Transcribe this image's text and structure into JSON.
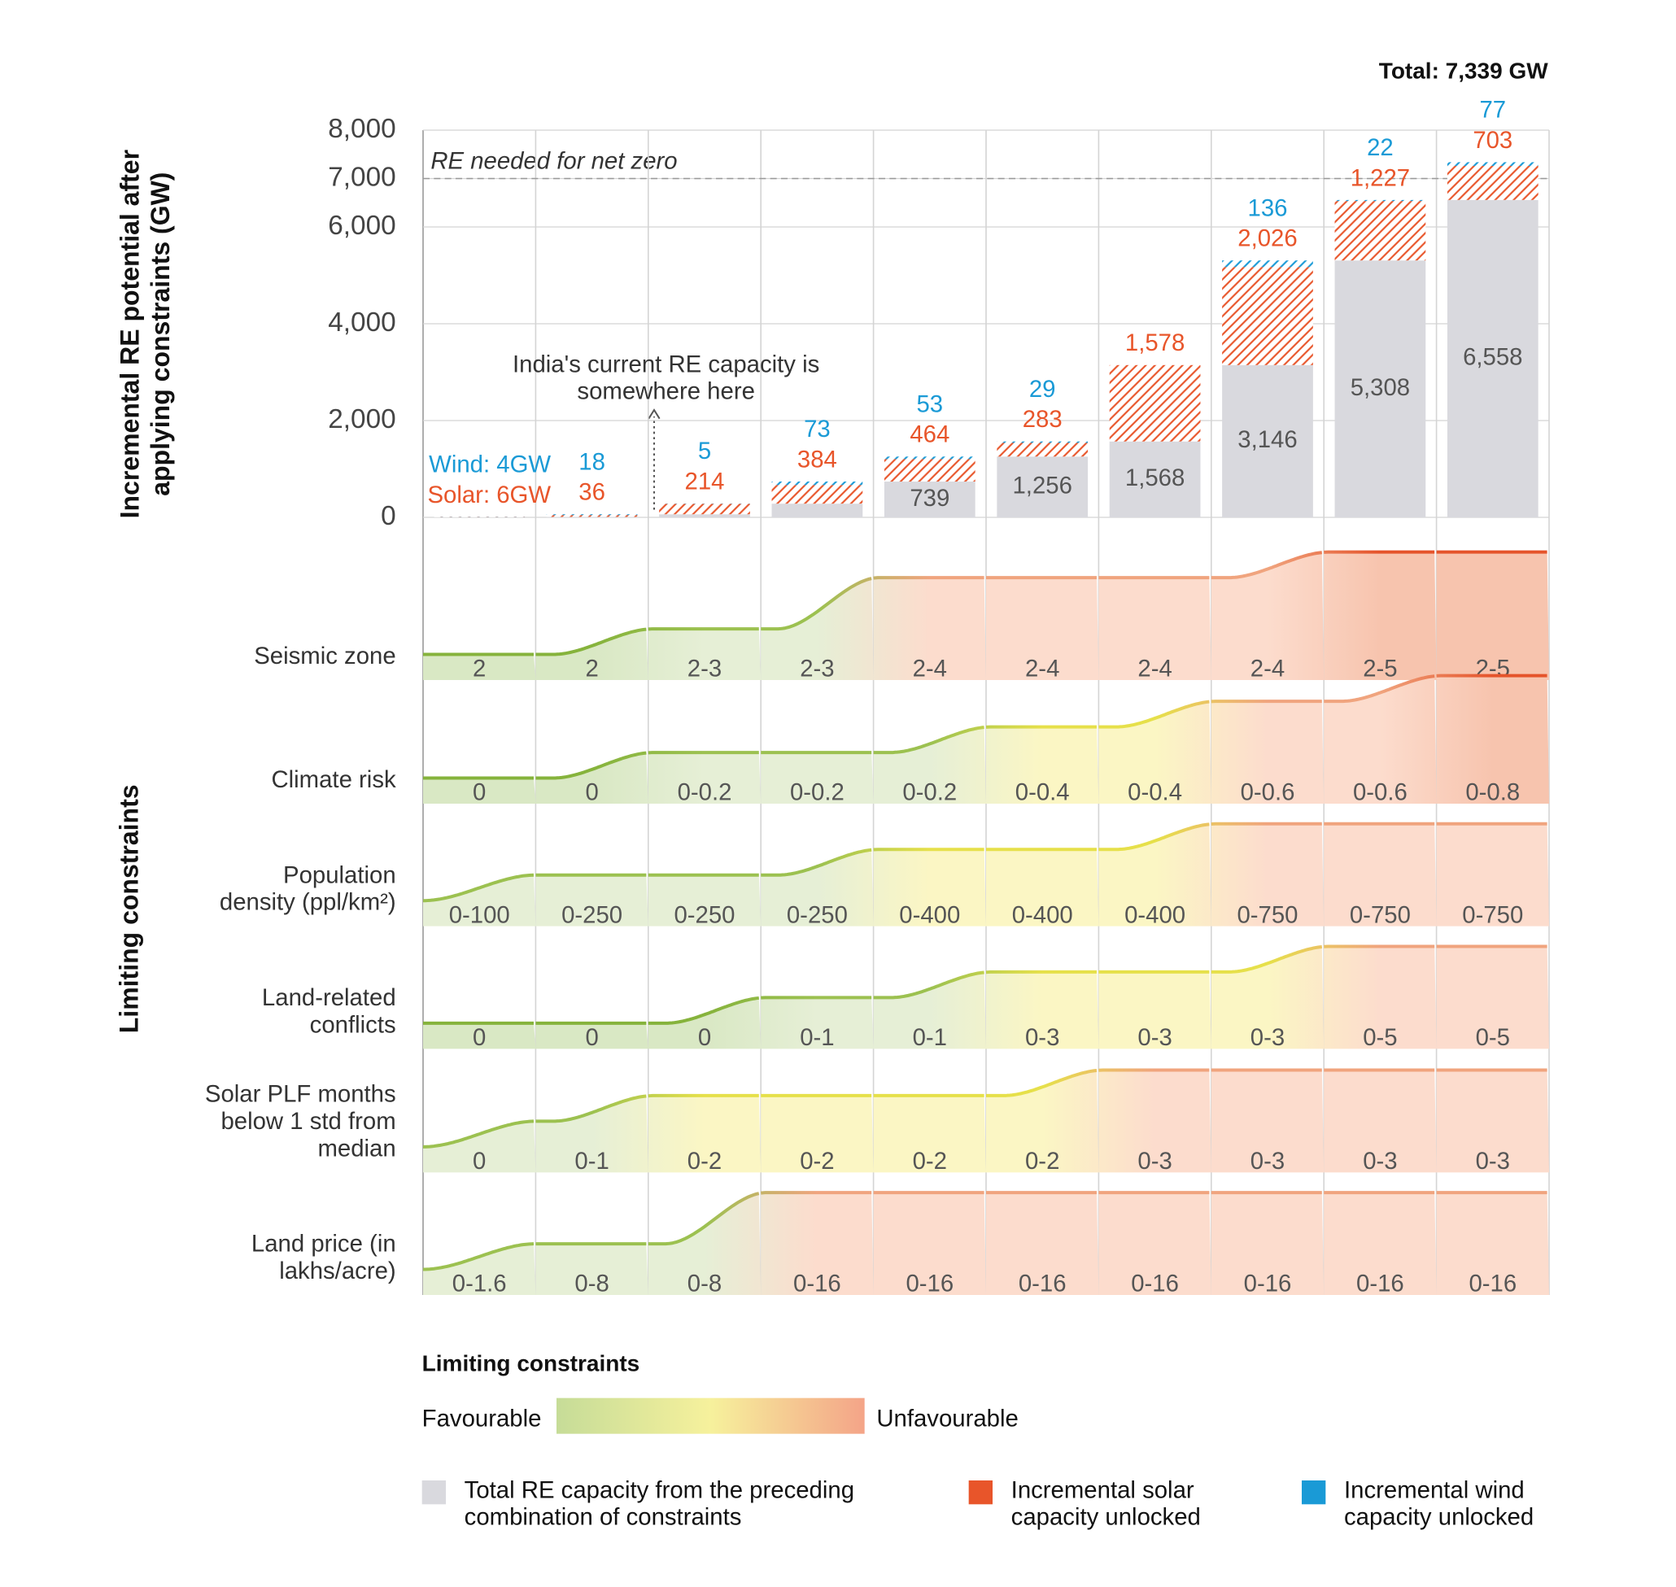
{
  "chart_data": {
    "type": "bar",
    "total_label": "Total: 7,339 GW",
    "ylabel": "Incremental RE potential after applying constraints (GW)",
    "ylim": [
      0,
      8000
    ],
    "yticks": [
      0,
      {
        "value": 2000,
        "label": "2,000"
      },
      {
        "value": 4000,
        "label": "4,000"
      },
      {
        "value": 6000,
        "label": "6,000"
      },
      {
        "value": 7000,
        "label": "7,000"
      },
      {
        "value": 8000,
        "label": "8,000"
      }
    ],
    "grid": true,
    "reference_line": {
      "value": 7000,
      "label": "RE needed for net zero"
    },
    "annotation": "India's current RE capacity is somewhere here",
    "series": [
      {
        "name": "Total RE capacity from the preceding combination of constraints",
        "color": "#d9d9de",
        "values": [
          0,
          10,
          64,
          283,
          739,
          1256,
          1568,
          3146,
          5308,
          6558
        ],
        "value_labels": [
          null,
          null,
          null,
          null,
          "739",
          "1,256",
          "1,568",
          "3,146",
          "5,308",
          "6,558"
        ]
      },
      {
        "name": "Incremental solar capacity unlocked",
        "color": "#e8552a",
        "values": [
          6,
          36,
          214,
          384,
          464,
          283,
          1578,
          2026,
          1227,
          703
        ],
        "value_labels": [
          "Solar: 6GW",
          "36",
          "214",
          "384",
          "464",
          "283",
          "1,578",
          "2,026",
          "1,227",
          "703"
        ]
      },
      {
        "name": "Incremental wind capacity unlocked",
        "color": "#1a9ad6",
        "values": [
          4,
          18,
          5,
          73,
          53,
          29,
          null,
          136,
          22,
          77
        ],
        "value_labels": [
          "Wind: 4GW",
          "18",
          "5",
          "73",
          "53",
          "29",
          null,
          "136",
          "22",
          "77"
        ]
      }
    ],
    "constraints": {
      "axis_label": "Limiting constraints",
      "level_fills": [
        "#d9e8c4",
        "#e6efd6",
        "#fbf6c4",
        "#fcdccd",
        "#f7c4ae"
      ],
      "level_strokes": [
        "#86b33c",
        "#9cc150",
        "#e6e04a",
        "#f0a47e",
        "#e5542b"
      ],
      "rows": [
        {
          "name": "Seismic zone",
          "labels": [
            "2",
            "2",
            "2-3",
            "2-3",
            "2-4",
            "2-4",
            "2-4",
            "2-4",
            "2-5",
            "2-5"
          ],
          "levels": [
            1,
            1,
            2,
            2,
            4,
            4,
            4,
            4,
            5,
            5
          ]
        },
        {
          "name": "Climate risk",
          "labels": [
            "0",
            "0",
            "0-0.2",
            "0-0.2",
            "0-0.2",
            "0-0.4",
            "0-0.4",
            "0-0.6",
            "0-0.6",
            "0-0.8"
          ],
          "levels": [
            1,
            1,
            2,
            2,
            2,
            3,
            3,
            4,
            4,
            5
          ]
        },
        {
          "name": "Population density (ppl/km²)",
          "labels": [
            "0-100",
            "0-250",
            "0-250",
            "0-250",
            "0-400",
            "0-400",
            "0-400",
            "0-750",
            "0-750",
            "0-750"
          ],
          "start": 1,
          "levels": [
            2,
            2,
            2,
            2,
            3,
            3,
            3,
            4,
            4,
            4
          ]
        },
        {
          "name": "Land-related conflicts",
          "labels": [
            "0",
            "0",
            "0",
            "0-1",
            "0-1",
            "0-3",
            "0-3",
            "0-3",
            "0-5",
            "0-5"
          ],
          "levels": [
            1,
            1,
            1,
            2,
            2,
            3,
            3,
            3,
            4,
            4
          ]
        },
        {
          "name": "Solar PLF months below 1 std from median",
          "labels": [
            "0",
            "0-1",
            "0-2",
            "0-2",
            "0-2",
            "0-2",
            "0-3",
            "0-3",
            "0-3",
            "0-3"
          ],
          "start": 1,
          "levels": [
            2,
            2,
            3,
            3,
            3,
            3,
            4,
            4,
            4,
            4
          ]
        },
        {
          "name": "Land price (in lakhs/acre)",
          "labels": [
            "0-1.6",
            "0-8",
            "0-8",
            "0-16",
            "0-16",
            "0-16",
            "0-16",
            "0-16",
            "0-16",
            "0-16"
          ],
          "start": 1,
          "levels": [
            2,
            2,
            2,
            4,
            4,
            4,
            4,
            4,
            4,
            4
          ]
        }
      ]
    },
    "legend": {
      "title": "Limiting constraints",
      "low": "Favourable",
      "high": "Unfavourable",
      "gradient": [
        "#c6dc98",
        "#f6f19c",
        "#f4a488"
      ]
    }
  }
}
